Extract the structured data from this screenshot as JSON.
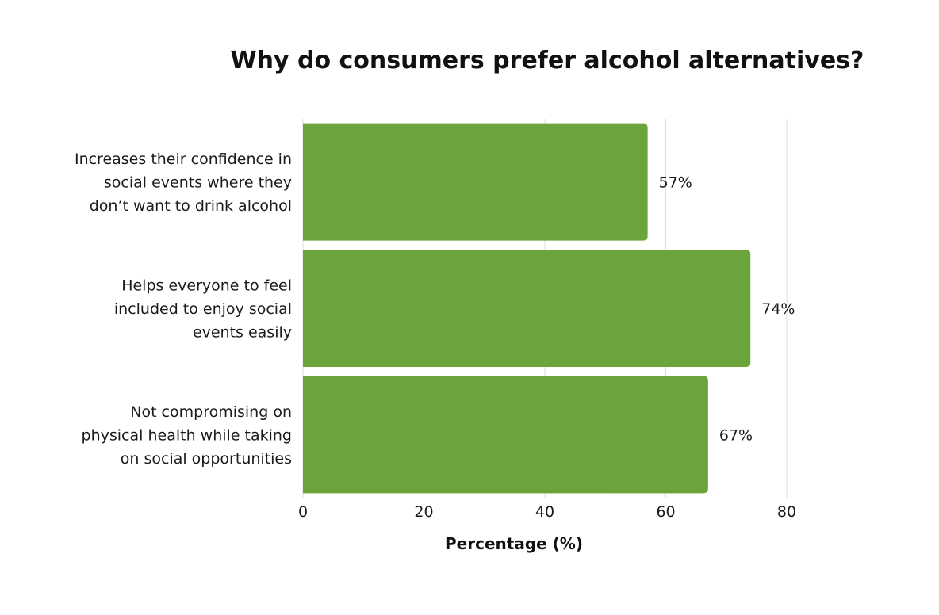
{
  "chart_data": {
    "type": "bar",
    "orientation": "horizontal",
    "title": "Why do consumers prefer alcohol alternatives?",
    "xlabel": "Percentage (%)",
    "ylabel": "",
    "categories": [
      [
        "Increases their confidence in",
        "social events where they",
        "don’t want to drink alcohol"
      ],
      [
        "Helps everyone to feel",
        "included to enjoy social",
        "events easily"
      ],
      [
        "Not compromising on",
        "physical health while taking",
        "on social opportunities"
      ]
    ],
    "values": [
      57,
      74,
      67
    ],
    "value_labels": [
      "57%",
      "74%",
      "67%"
    ],
    "xlim": [
      0,
      80
    ],
    "xticks": [
      0,
      20,
      40,
      60,
      80
    ],
    "xtick_labels": [
      "0",
      "20",
      "40",
      "60",
      "80"
    ],
    "grid": true,
    "legend": "none",
    "bar_color": "#6aa43b"
  }
}
